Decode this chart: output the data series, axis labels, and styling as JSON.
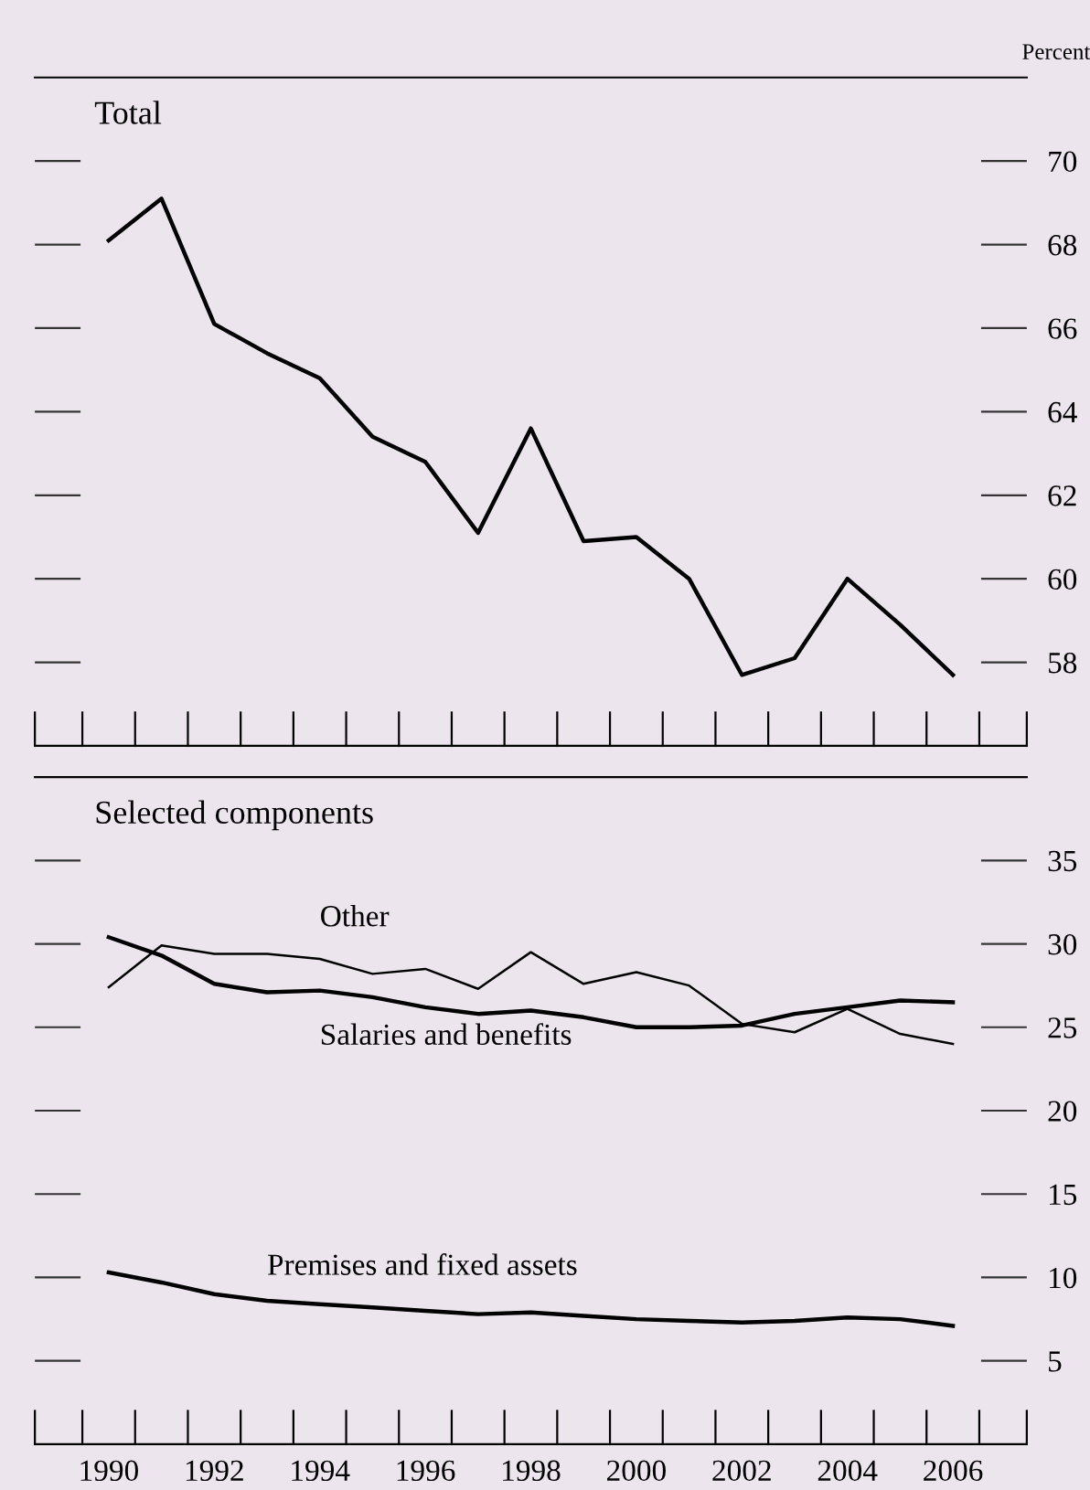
{
  "chart_data": [
    {
      "type": "line",
      "title": "Total",
      "ylabel": "Percent",
      "x": [
        1990,
        1991,
        1992,
        1993,
        1994,
        1995,
        1996,
        1997,
        1998,
        1999,
        2000,
        2001,
        2002,
        2003,
        2004,
        2005,
        2006
      ],
      "series": [
        {
          "color": "#000000",
          "values": [
            68.1,
            69.1,
            66.1,
            65.4,
            64.8,
            63.4,
            62.8,
            61.1,
            63.6,
            60.9,
            61.0,
            60.0,
            57.7,
            58.1,
            60.0,
            58.9,
            57.7
          ]
        }
      ],
      "xlim": [
        1988.6,
        2007.4
      ],
      "ylim": [
        56,
        72
      ],
      "yticks": [
        58,
        60,
        62,
        64,
        66,
        68,
        70
      ],
      "tick_labels": "y",
      "grid": false,
      "legend": false,
      "marker": "none",
      "line_style": "solid"
    },
    {
      "type": "line",
      "title": "Selected components",
      "x": [
        1990,
        1991,
        1992,
        1993,
        1994,
        1995,
        1996,
        1997,
        1998,
        1999,
        2000,
        2001,
        2002,
        2003,
        2004,
        2005,
        2006
      ],
      "series": [
        {
          "name": "Other",
          "color": "#000000",
          "values": [
            27.4,
            29.9,
            29.4,
            29.4,
            29.1,
            28.2,
            28.5,
            27.3,
            29.5,
            27.6,
            28.3,
            27.5,
            25.2,
            24.7,
            26.1,
            24.6,
            24.0
          ]
        },
        {
          "name": "Salaries and benefits",
          "color": "#000000",
          "values": [
            30.4,
            29.3,
            27.6,
            27.1,
            27.2,
            26.8,
            26.2,
            25.8,
            26.0,
            25.6,
            25.0,
            25.0,
            25.1,
            25.8,
            26.2,
            26.6,
            26.5
          ]
        },
        {
          "name": "Premises and fixed assets",
          "color": "#000000",
          "values": [
            10.3,
            9.7,
            9.0,
            8.6,
            8.4,
            8.2,
            8.0,
            7.8,
            7.9,
            7.7,
            7.5,
            7.4,
            7.3,
            7.4,
            7.6,
            7.5,
            7.1
          ]
        }
      ],
      "xlim": [
        1988.6,
        2007.4
      ],
      "ylim": [
        0,
        40
      ],
      "yticks": [
        5,
        10,
        15,
        20,
        25,
        30,
        35
      ],
      "xticks": [
        1990,
        1992,
        1994,
        1996,
        1998,
        2000,
        2002,
        2004,
        2006
      ],
      "grid": false,
      "legend": false,
      "marker": "none",
      "line_style": "solid"
    }
  ]
}
